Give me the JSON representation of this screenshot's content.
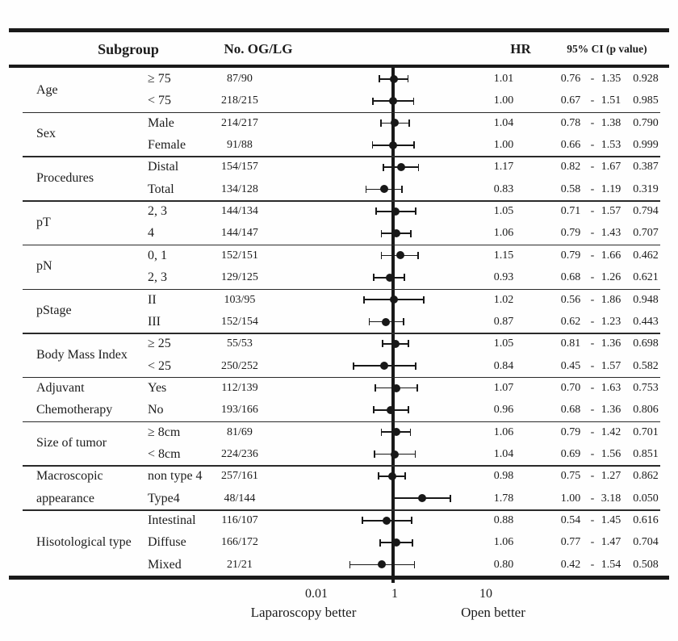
{
  "header": {
    "subgroup": "Subgroup",
    "no_og_lg": "No. OG/LG",
    "hr": "HR",
    "ci_p": "95% CI (p value)"
  },
  "chart_data": {
    "type": "scatter",
    "subtype": "forest-plot",
    "x_scale": "log",
    "reference_value": 1,
    "x_tick_values": [
      0.01,
      1,
      10
    ],
    "x_ticks": [
      "0.01",
      "1",
      "10"
    ],
    "x_axis_annotations": {
      "left": "Laparoscopy better",
      "right": "Open better"
    },
    "columns": [
      "Subgroup",
      "No. OG/LG",
      "HR",
      "95% CI (p value)"
    ],
    "ci_dash": "-",
    "groups": [
      {
        "label_lines": [
          "Age"
        ],
        "rows": [
          {
            "level": "≥ 75",
            "n": "87/90",
            "hr": "1.01",
            "ci_lo": "0.76",
            "ci_hi": "1.35",
            "p": "0.928"
          },
          {
            "level": "< 75",
            "n": "218/215",
            "hr": "1.00",
            "ci_lo": "0.67",
            "ci_hi": "1.51",
            "p": "0.985"
          }
        ]
      },
      {
        "label_lines": [
          "Sex"
        ],
        "rows": [
          {
            "level": "Male",
            "n": "214/217",
            "hr": "1.04",
            "ci_lo": "0.78",
            "ci_hi": "1.38",
            "p": "0.790"
          },
          {
            "level": "Female",
            "n": "91/88",
            "hr": "1.00",
            "ci_lo": "0.66",
            "ci_hi": "1.53",
            "p": "0.999"
          }
        ]
      },
      {
        "label_lines": [
          "Procedures"
        ],
        "rows": [
          {
            "level": "Distal",
            "n": "154/157",
            "hr": "1.17",
            "ci_lo": "0.82",
            "ci_hi": "1.67",
            "p": "0.387"
          },
          {
            "level": "Total",
            "n": "134/128",
            "hr": "0.83",
            "ci_lo": "0.58",
            "ci_hi": "1.19",
            "p": "0.319"
          }
        ]
      },
      {
        "label_lines": [
          "pT"
        ],
        "rows": [
          {
            "level": "2, 3",
            "n": "144/134",
            "hr": "1.05",
            "ci_lo": "0.71",
            "ci_hi": "1.57",
            "p": "0.794"
          },
          {
            "level": "4",
            "n": "144/147",
            "hr": "1.06",
            "ci_lo": "0.79",
            "ci_hi": "1.43",
            "p": "0.707"
          }
        ]
      },
      {
        "label_lines": [
          "pN"
        ],
        "rows": [
          {
            "level": "0, 1",
            "n": "152/151",
            "hr": "1.15",
            "ci_lo": "0.79",
            "ci_hi": "1.66",
            "p": "0.462"
          },
          {
            "level": "2, 3",
            "n": "129/125",
            "hr": "0.93",
            "ci_lo": "0.68",
            "ci_hi": "1.26",
            "p": "0.621"
          }
        ]
      },
      {
        "label_lines": [
          "pStage"
        ],
        "rows": [
          {
            "level": "II",
            "n": "103/95",
            "hr": "1.02",
            "ci_lo": "0.56",
            "ci_hi": "1.86",
            "p": "0.948"
          },
          {
            "level": "III",
            "n": "152/154",
            "hr": "0.87",
            "ci_lo": "0.62",
            "ci_hi": "1.23",
            "p": "0.443"
          }
        ]
      },
      {
        "label_lines": [
          "Body Mass Index"
        ],
        "rows": [
          {
            "level": "≥ 25",
            "n": "55/53",
            "hr": "1.05",
            "ci_lo": "0.81",
            "ci_hi": "1.36",
            "p": "0.698"
          },
          {
            "level": "< 25",
            "n": "250/252",
            "hr": "0.84",
            "ci_lo": "0.45",
            "ci_hi": "1.57",
            "p": "0.582"
          }
        ]
      },
      {
        "label_lines": [
          "Adjuvant",
          "Chemotherapy"
        ],
        "rows": [
          {
            "level": "Yes",
            "n": "112/139",
            "hr": "1.07",
            "ci_lo": "0.70",
            "ci_hi": "1.63",
            "p": "0.753"
          },
          {
            "level": "No",
            "n": "193/166",
            "hr": "0.96",
            "ci_lo": "0.68",
            "ci_hi": "1.36",
            "p": "0.806"
          }
        ]
      },
      {
        "label_lines": [
          "Size of tumor"
        ],
        "rows": [
          {
            "level": "≥ 8cm",
            "n": "81/69",
            "hr": "1.06",
            "ci_lo": "0.79",
            "ci_hi": "1.42",
            "p": "0.701"
          },
          {
            "level": "< 8cm",
            "n": "224/236",
            "hr": "1.04",
            "ci_lo": "0.69",
            "ci_hi": "1.56",
            "p": "0.851"
          }
        ]
      },
      {
        "label_lines": [
          "Macroscopic",
          "appearance"
        ],
        "rows": [
          {
            "level": "non type 4",
            "n": "257/161",
            "hr": "0.98",
            "ci_lo": "0.75",
            "ci_hi": "1.27",
            "p": "0.862"
          },
          {
            "level": "Type4",
            "n": "48/144",
            "hr": "1.78",
            "ci_lo": "1.00",
            "ci_hi": "3.18",
            "p": "0.050"
          }
        ]
      },
      {
        "label_lines": [
          "Hisotological type"
        ],
        "rows": [
          {
            "level": "Intestinal",
            "n": "116/107",
            "hr": "0.88",
            "ci_lo": "0.54",
            "ci_hi": "1.45",
            "p": "0.616"
          },
          {
            "level": "Diffuse",
            "n": "166/172",
            "hr": "1.06",
            "ci_lo": "0.77",
            "ci_hi": "1.47",
            "p": "0.704"
          },
          {
            "level": "Mixed",
            "n": "21/21",
            "hr": "0.80",
            "ci_lo": "0.42",
            "ci_hi": "1.54",
            "p": "0.508"
          }
        ]
      }
    ]
  }
}
